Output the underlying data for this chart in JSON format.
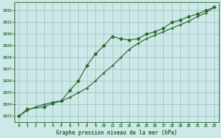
{
  "title": "Graphe pression niveau de la mer (hPa)",
  "background_color": "#cce8e8",
  "grid_color": "#9abcbc",
  "line_color": "#2d6b2d",
  "xlim": [
    -0.5,
    23.5
  ],
  "ylim": [
    1022.5,
    1032.7
  ],
  "xticks": [
    0,
    1,
    2,
    3,
    4,
    5,
    6,
    7,
    8,
    9,
    10,
    11,
    12,
    13,
    14,
    15,
    16,
    17,
    18,
    19,
    20,
    21,
    22,
    23
  ],
  "yticks": [
    1023,
    1024,
    1025,
    1026,
    1027,
    1028,
    1029,
    1030,
    1031,
    1032
  ],
  "line1_x": [
    0,
    1,
    2,
    3,
    4,
    5,
    6,
    7,
    8,
    9,
    10,
    11,
    12,
    13,
    14,
    15,
    16,
    17,
    18,
    19,
    20,
    21,
    22,
    23
  ],
  "line1_y": [
    1023.0,
    1023.5,
    1023.8,
    1024.0,
    1024.2,
    1024.3,
    1024.6,
    1025.0,
    1025.4,
    1026.0,
    1026.7,
    1027.3,
    1028.0,
    1028.7,
    1029.2,
    1029.6,
    1029.9,
    1030.2,
    1030.5,
    1030.8,
    1031.1,
    1031.5,
    1031.8,
    1032.3
  ],
  "line2_x": [
    0,
    1,
    3,
    4,
    5,
    6,
    7,
    8,
    9,
    10,
    11,
    12,
    13,
    14,
    15,
    16,
    17,
    18,
    19,
    20,
    21,
    22,
    23
  ],
  "line2_y": [
    1023.0,
    1023.6,
    1023.8,
    1024.1,
    1024.3,
    1025.2,
    1026.0,
    1027.3,
    1028.3,
    1029.0,
    1029.8,
    1029.6,
    1029.5,
    1029.6,
    1030.0,
    1030.2,
    1030.5,
    1031.0,
    1031.2,
    1031.5,
    1031.7,
    1032.0,
    1032.3
  ]
}
